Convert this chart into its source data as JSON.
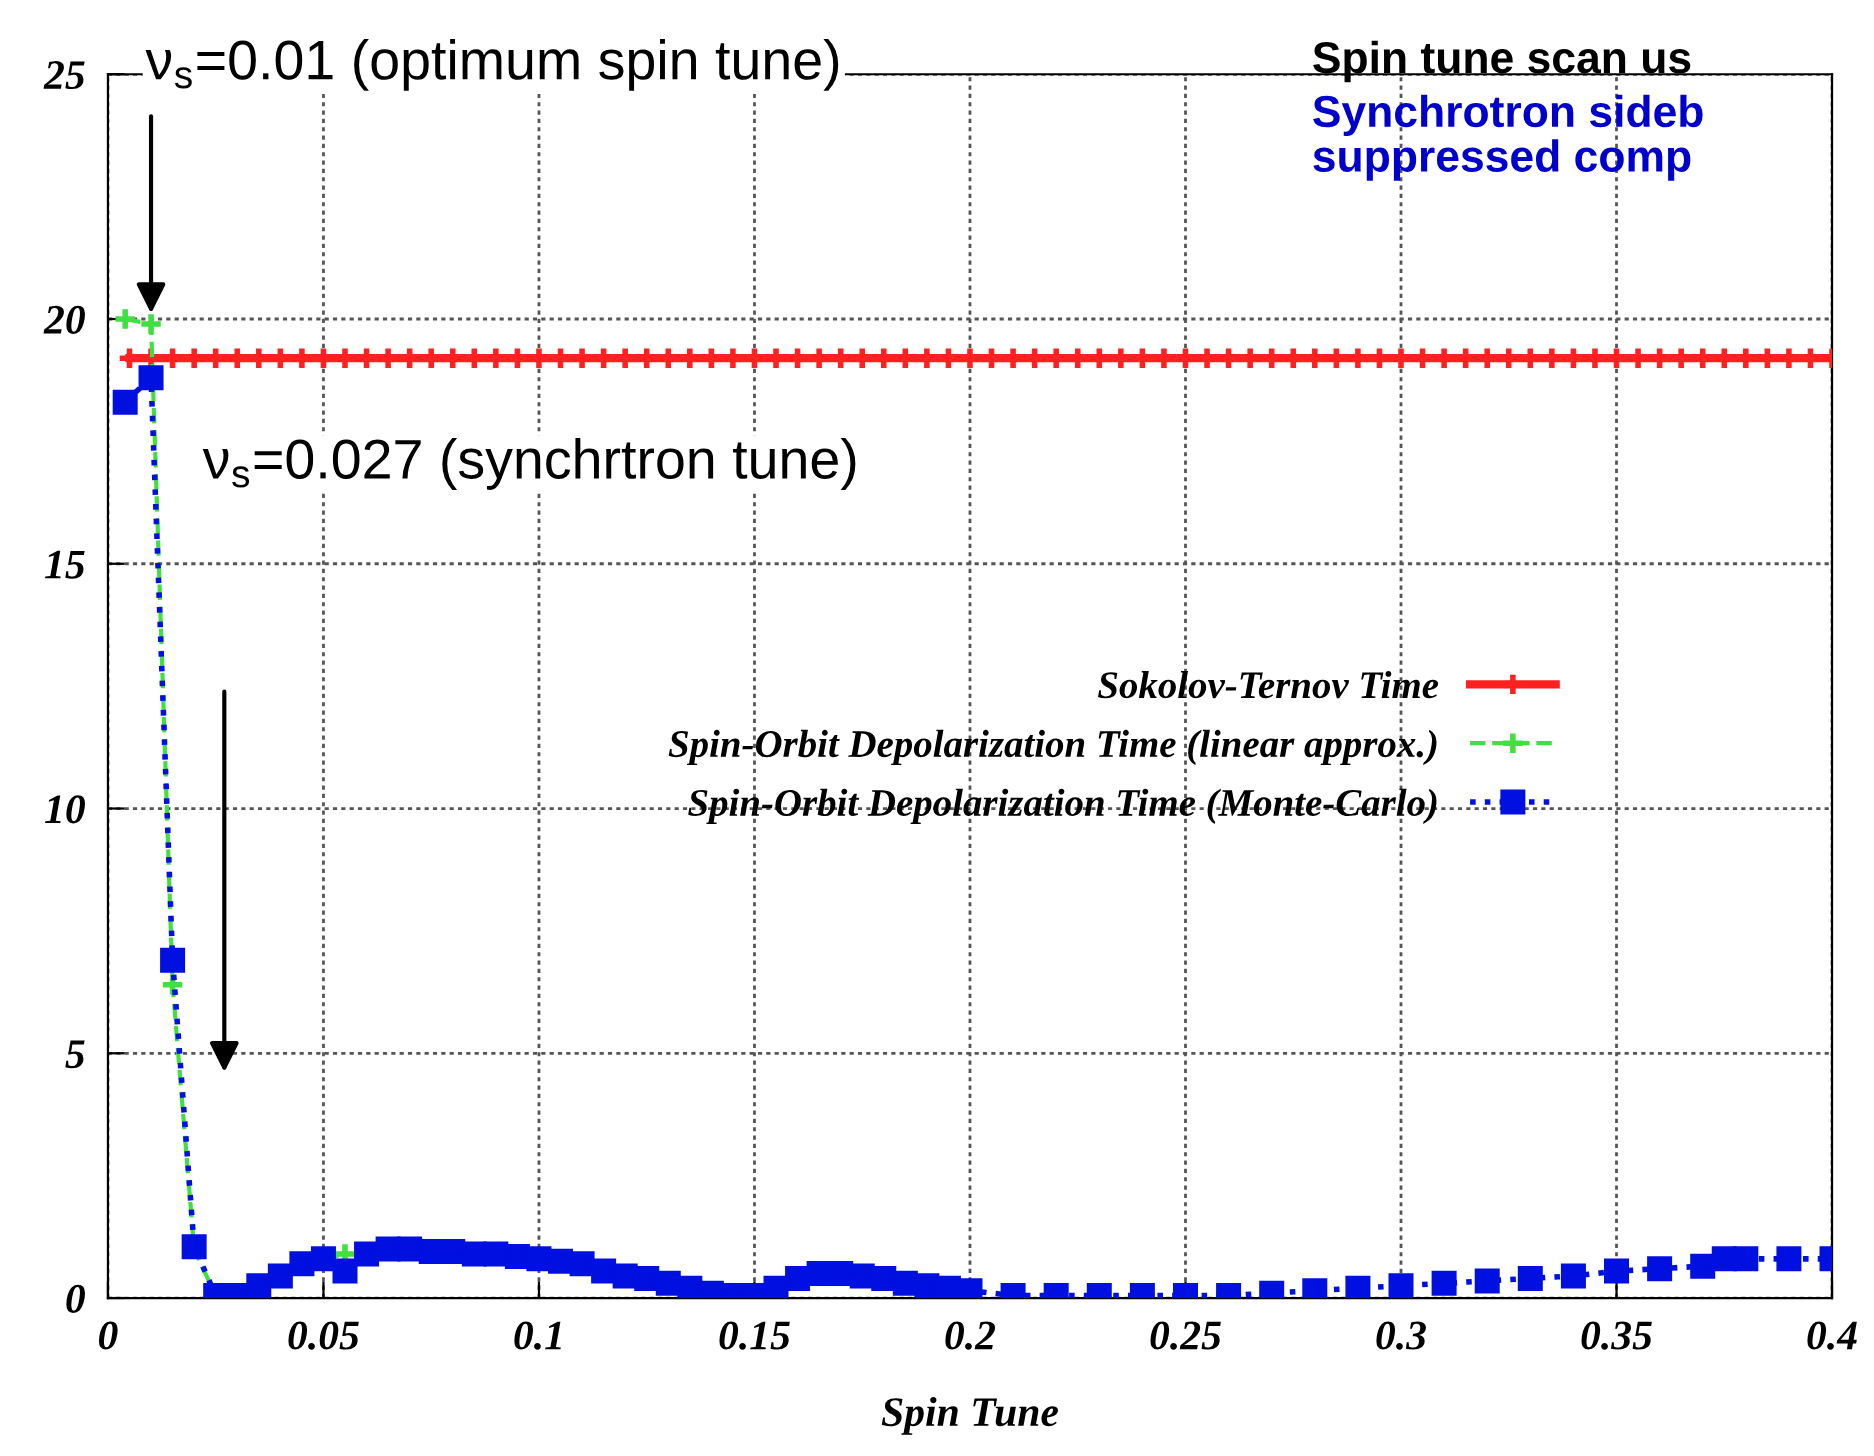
{
  "chart_data": {
    "type": "line",
    "title": "Spin tune scan us",
    "subtitle": "Synchrotron sideb\nsuppressed comp",
    "xlabel": "Spin Tune",
    "xlim": [
      0,
      0.4
    ],
    "xticks": [
      0,
      0.05,
      0.1,
      0.15,
      0.2,
      0.25,
      0.3,
      0.35,
      0.4
    ],
    "ylim": [
      0,
      25
    ],
    "yticks": [
      0,
      5,
      10,
      15,
      20,
      25
    ],
    "grid": true,
    "legend": "right",
    "annotations": [
      {
        "text": "ν$_{s}$=0.01 (optimum spin tune)",
        "x": 0.01,
        "y": 20
      },
      "ν$_{s}$=0.027 (synchrtron tune)"
    ],
    "series": [
      {
        "name": "Sokolov-Ternov Time",
        "color": "#ff2020",
        "marker": "cross",
        "line_style": "solid",
        "x": [
          0.005,
          0.01,
          0.015,
          0.02,
          0.025,
          0.03,
          0.035,
          0.04,
          0.045,
          0.05,
          0.055,
          0.06,
          0.065,
          0.07,
          0.075,
          0.08,
          0.085,
          0.09,
          0.095,
          0.1,
          0.105,
          0.11,
          0.115,
          0.12,
          0.125,
          0.13,
          0.135,
          0.14,
          0.145,
          0.15,
          0.155,
          0.16,
          0.165,
          0.17,
          0.175,
          0.18,
          0.185,
          0.19,
          0.195,
          0.2,
          0.205,
          0.21,
          0.215,
          0.22,
          0.225,
          0.23,
          0.235,
          0.24,
          0.245,
          0.25,
          0.255,
          0.26,
          0.265,
          0.27,
          0.275,
          0.28,
          0.285,
          0.29,
          0.295,
          0.3,
          0.305,
          0.31,
          0.315,
          0.32,
          0.325,
          0.33,
          0.335,
          0.34,
          0.345,
          0.35,
          0.355,
          0.36,
          0.365,
          0.37,
          0.375,
          0.38,
          0.385,
          0.39,
          0.395,
          0.4
        ],
        "values": [
          19.2,
          19.2,
          19.2,
          19.2,
          19.2,
          19.2,
          19.2,
          19.2,
          19.2,
          19.2,
          19.2,
          19.2,
          19.2,
          19.2,
          19.2,
          19.2,
          19.2,
          19.2,
          19.2,
          19.2,
          19.2,
          19.2,
          19.2,
          19.2,
          19.2,
          19.2,
          19.2,
          19.2,
          19.2,
          19.2,
          19.2,
          19.2,
          19.2,
          19.2,
          19.2,
          19.2,
          19.2,
          19.2,
          19.2,
          19.2,
          19.2,
          19.2,
          19.2,
          19.2,
          19.2,
          19.2,
          19.2,
          19.2,
          19.2,
          19.2,
          19.2,
          19.2,
          19.2,
          19.2,
          19.2,
          19.2,
          19.2,
          19.2,
          19.2,
          19.2,
          19.2,
          19.2,
          19.2,
          19.2,
          19.2,
          19.2,
          19.2,
          19.2,
          19.2,
          19.2,
          19.2,
          19.2,
          19.2,
          19.2,
          19.2,
          19.2,
          19.2,
          19.2,
          19.2,
          19.2
        ]
      },
      {
        "name": "Spin-Orbit Depolarization Time (linear approx.)",
        "color": "#40e040",
        "marker": "cross",
        "line_style": "dashed",
        "x": [
          0.004,
          0.01,
          0.015,
          0.02,
          0.025,
          0.03,
          0.035,
          0.04,
          0.045,
          0.05,
          0.055,
          0.06
        ],
        "values": [
          20,
          19.9,
          6.4,
          1.0,
          0.05,
          null,
          null,
          null,
          null,
          0.8,
          0.9,
          0.9
        ]
      },
      {
        "name": "Spin-Orbit Depolarization Time (Monte-Carlo)",
        "color": "#0010e0",
        "marker": "square",
        "line_style": "dotted",
        "x": [
          0.004,
          0.01,
          0.015,
          0.02,
          0.025,
          0.03,
          0.035,
          0.04,
          0.045,
          0.05,
          0.055,
          0.06,
          0.065,
          0.07,
          0.075,
          0.08,
          0.085,
          0.09,
          0.095,
          0.1,
          0.105,
          0.11,
          0.115,
          0.12,
          0.125,
          0.13,
          0.135,
          0.14,
          0.145,
          0.15,
          0.155,
          0.16,
          0.165,
          0.17,
          0.175,
          0.18,
          0.185,
          0.19,
          0.195,
          0.2,
          0.21,
          0.22,
          0.23,
          0.24,
          0.25,
          0.26,
          0.27,
          0.28,
          0.29,
          0.3,
          0.31,
          0.32,
          0.33,
          0.34,
          0.35,
          0.36,
          0.37,
          0.375,
          0.38,
          0.39,
          0.4
        ],
        "values": [
          18.3,
          18.8,
          6.9,
          1.05,
          0.05,
          0.05,
          0.25,
          0.45,
          0.7,
          0.8,
          0.55,
          0.9,
          1.0,
          1.0,
          0.95,
          0.95,
          0.9,
          0.9,
          0.85,
          0.8,
          0.75,
          0.7,
          0.55,
          0.45,
          0.4,
          0.3,
          0.2,
          0.1,
          0.05,
          0.05,
          0.2,
          0.4,
          0.5,
          0.5,
          0.45,
          0.4,
          0.3,
          0.25,
          0.2,
          0.15,
          0.05,
          0.05,
          0.05,
          0.05,
          0.05,
          0.05,
          0.1,
          0.15,
          0.2,
          0.25,
          0.3,
          0.35,
          0.4,
          0.45,
          0.55,
          0.6,
          0.65,
          0.8,
          0.8,
          0.8,
          0.8
        ]
      }
    ]
  }
}
